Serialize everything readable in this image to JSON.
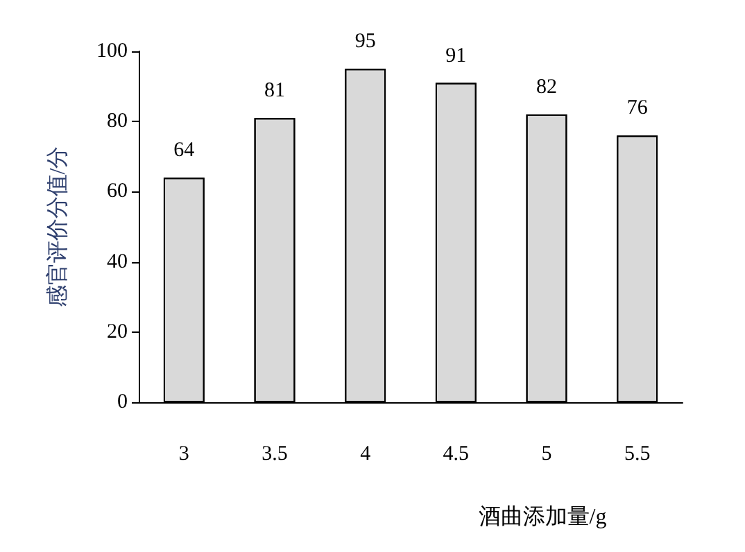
{
  "chart_data": {
    "type": "bar",
    "xlabel": "酒曲添加量/g",
    "ylabel": "感官评价分值/分",
    "categories": [
      "3",
      "3.5",
      "4",
      "4.5",
      "5",
      "5.5"
    ],
    "values": [
      64,
      81,
      95,
      91,
      82,
      76
    ],
    "color": "#d9d9d9",
    "ylim": [
      0,
      100
    ],
    "yticks": [
      0,
      20,
      40,
      60,
      80,
      100
    ],
    "grid": false,
    "data_labels": true
  }
}
